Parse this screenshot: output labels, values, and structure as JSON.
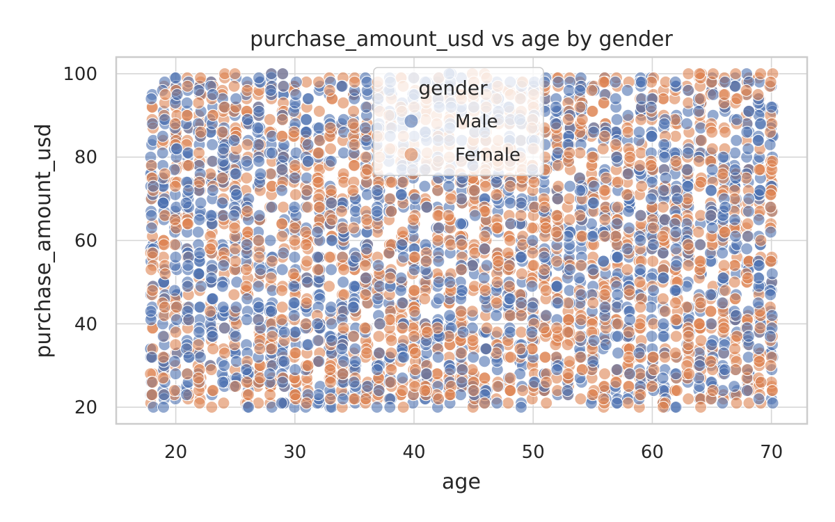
{
  "chart_data": {
    "type": "scatter",
    "title": "purchase_amount_usd vs age by gender",
    "xlabel": "age",
    "ylabel": "purchase_amount_usd",
    "xlim": [
      15,
      73
    ],
    "ylim": [
      16,
      104
    ],
    "xticks": [
      "20",
      "30",
      "40",
      "50",
      "60",
      "70"
    ],
    "yticks": [
      "20",
      "40",
      "60",
      "80",
      "100"
    ],
    "grid": true,
    "legend": {
      "title": "gender",
      "placement": "upper-center"
    },
    "x_range": [
      18,
      70
    ],
    "y_range": [
      20,
      100
    ],
    "series": [
      {
        "name": "Male",
        "color": "#4c72b0",
        "opacity": 0.6
      },
      {
        "name": "Female",
        "color": "#dd8452",
        "opacity": 0.6
      }
    ]
  }
}
